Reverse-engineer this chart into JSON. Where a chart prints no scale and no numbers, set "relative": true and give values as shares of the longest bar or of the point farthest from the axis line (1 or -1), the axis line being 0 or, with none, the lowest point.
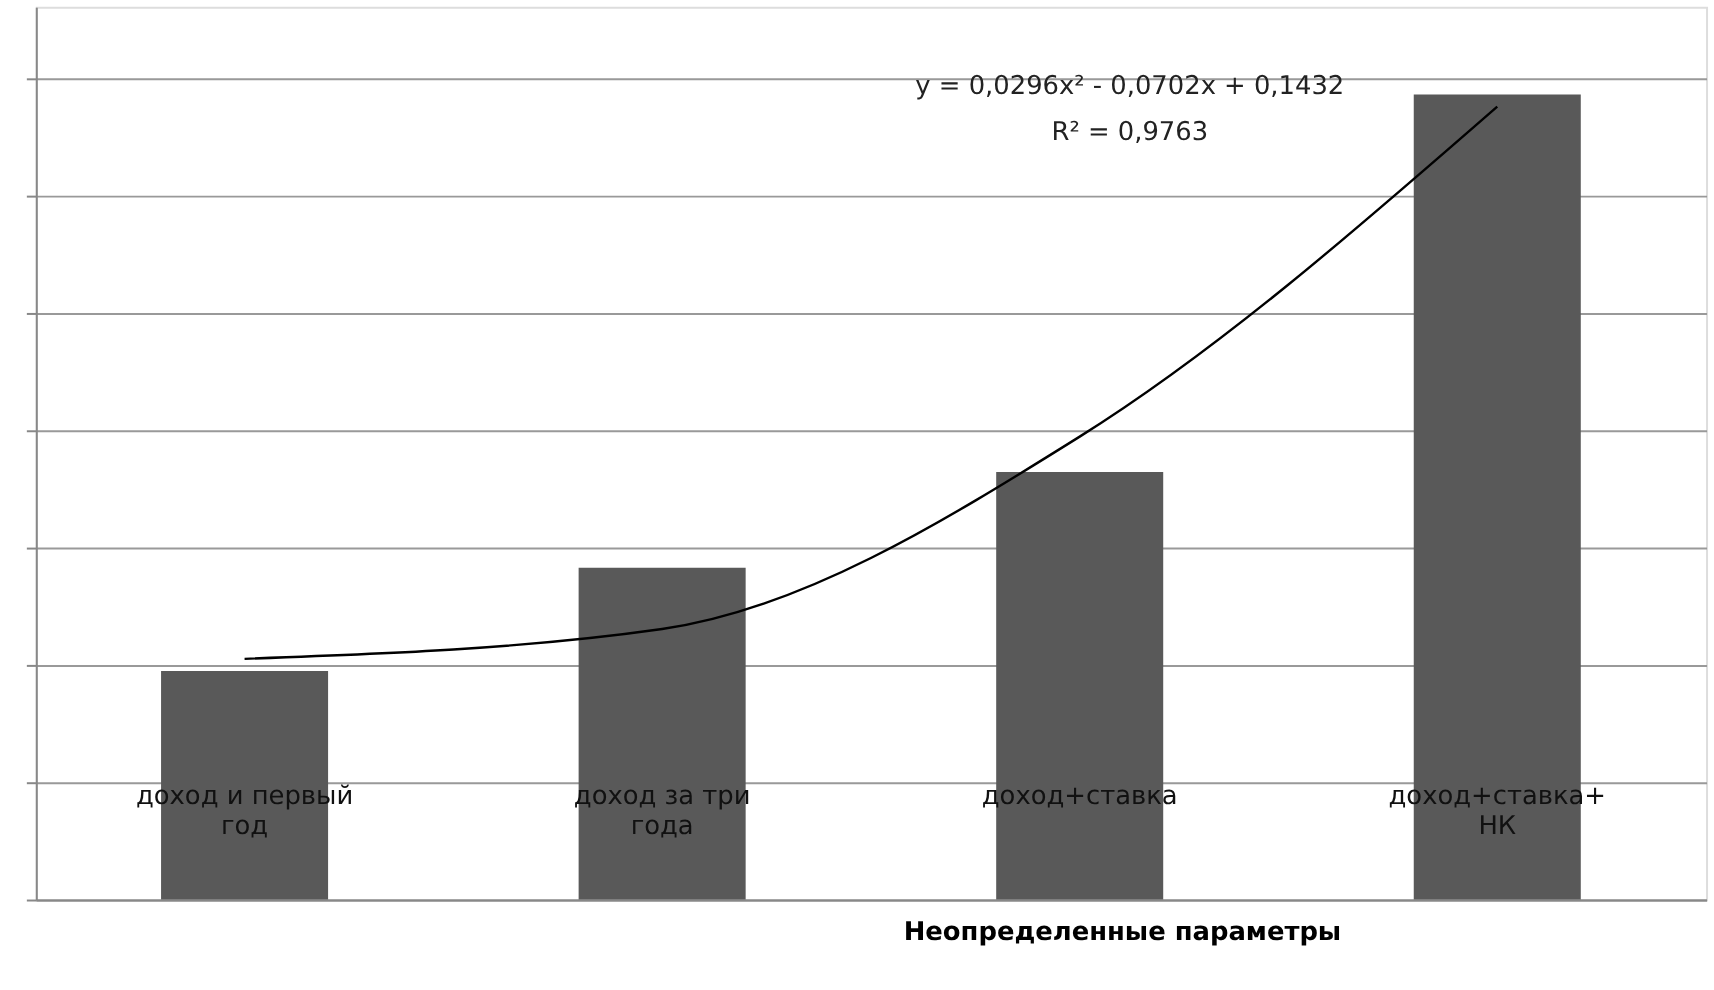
{
  "chart_data": {
    "type": "bar",
    "relative": true,
    "xlabel": "Неопределенные параметры",
    "categories": [
      "доход и первый\nгод",
      "доход за три\nгода",
      "доход+ставка",
      "доход+ставка+\nНК"
    ],
    "series": [
      {
        "color": "#595959",
        "values": [
          0.284,
          0.412,
          0.531,
          1
        ]
      },
      {
        "type": "line",
        "color": "#000000",
        "values": [
          0.299,
          0.336,
          0.575,
          0.985
        ]
      }
    ],
    "annotations": [
      "y = 0,0296x² - 0,0702x + 0,1432",
      "R² = 0,9763"
    ],
    "grid": "y"
  }
}
